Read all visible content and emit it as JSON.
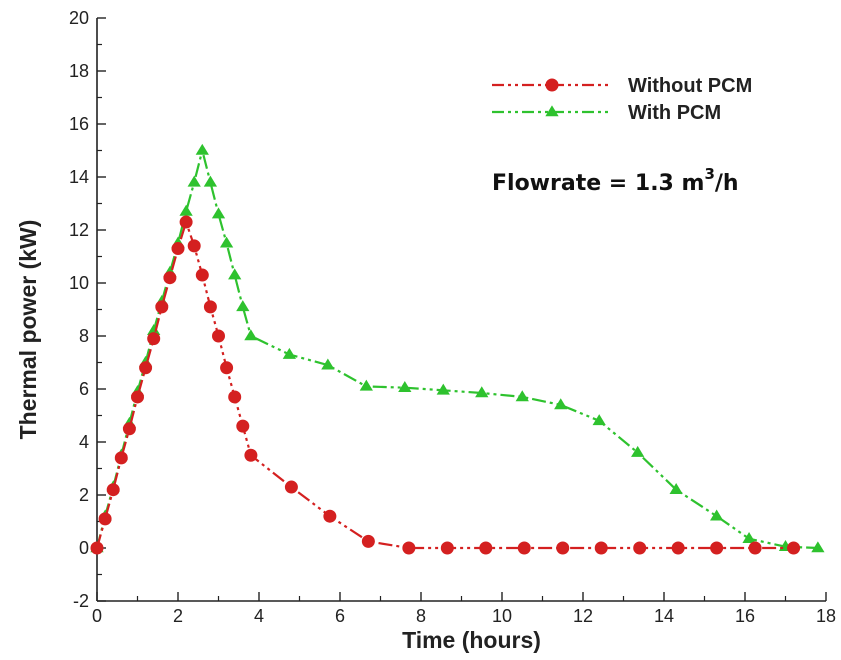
{
  "chart_data": {
    "type": "line",
    "xlabel": "Time (hours)",
    "ylabel": "Thermal power (kW)",
    "xlim": [
      0,
      18
    ],
    "ylim": [
      -2,
      20
    ],
    "xticks": [
      0,
      2,
      4,
      6,
      8,
      10,
      12,
      14,
      16,
      18
    ],
    "yticks": [
      -2,
      0,
      2,
      4,
      6,
      8,
      10,
      12,
      14,
      16,
      18,
      20
    ],
    "grid": false,
    "legend_position": "top-right",
    "annotation": {
      "prefix": "Flowrate = 1.3 m",
      "superscript": "3",
      "suffix": "/h"
    },
    "series": [
      {
        "name": "Without PCM",
        "color": "#d42020",
        "marker": "circle",
        "line_style": "dash-dot-dot",
        "x": [
          0,
          0.2,
          0.4,
          0.6,
          0.8,
          1.0,
          1.2,
          1.4,
          1.6,
          1.8,
          2.0,
          2.2,
          2.4,
          2.6,
          2.8,
          3.0,
          3.2,
          3.4,
          3.6,
          3.8,
          4.8,
          5.75,
          6.7,
          7.7,
          8.65,
          9.6,
          10.55,
          11.5,
          12.45,
          13.4,
          14.35,
          15.3,
          16.25,
          17.2
        ],
        "values": [
          0,
          1.1,
          2.2,
          3.4,
          4.5,
          5.7,
          6.8,
          7.9,
          9.1,
          10.2,
          11.3,
          12.3,
          11.4,
          10.3,
          9.1,
          8.0,
          6.8,
          5.7,
          4.6,
          3.5,
          2.3,
          1.2,
          0.25,
          0,
          0,
          0,
          0,
          0,
          0,
          0,
          0,
          0,
          0,
          0
        ]
      },
      {
        "name": "With PCM",
        "color": "#2ec22e",
        "marker": "triangle",
        "line_style": "dash-dot-dot",
        "x": [
          0,
          0.2,
          0.4,
          0.6,
          0.8,
          1.0,
          1.2,
          1.4,
          1.6,
          1.8,
          2.0,
          2.2,
          2.4,
          2.6,
          2.8,
          3.0,
          3.2,
          3.4,
          3.6,
          3.8,
          4.75,
          5.7,
          6.65,
          7.6,
          8.55,
          9.5,
          10.5,
          11.45,
          12.4,
          13.35,
          14.3,
          15.3,
          16.1,
          17.0,
          17.8
        ],
        "values": [
          0,
          1.2,
          2.3,
          3.5,
          4.7,
          5.9,
          7.0,
          8.2,
          9.3,
          10.4,
          11.5,
          12.7,
          13.8,
          15.0,
          13.8,
          12.6,
          11.5,
          10.3,
          9.1,
          8.0,
          7.3,
          6.9,
          6.1,
          6.05,
          5.95,
          5.85,
          5.7,
          5.4,
          4.8,
          3.6,
          2.2,
          1.2,
          0.35,
          0.05,
          0
        ]
      }
    ]
  }
}
